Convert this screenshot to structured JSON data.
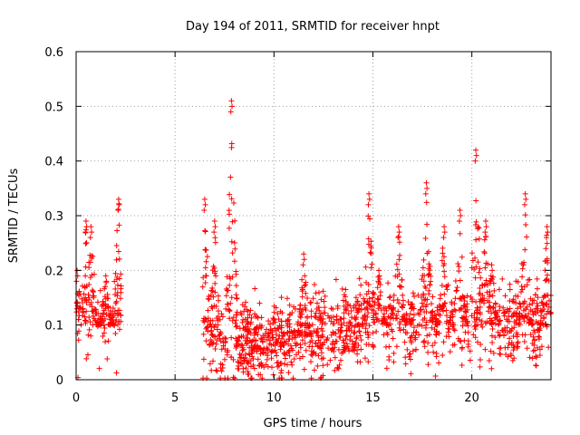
{
  "chart_data": {
    "type": "scatter",
    "title": "Day 194 of 2011, SRMTID for receiver hnpt",
    "xlabel": "GPS time / hours",
    "ylabel": "SRMTID / TECUs",
    "xlim": [
      0,
      24
    ],
    "ylim": [
      0,
      0.6
    ],
    "xticks": [
      0,
      5,
      10,
      15,
      20
    ],
    "xtick_labels": [
      "0",
      "5",
      "10",
      "15",
      "20"
    ],
    "yticks": [
      0,
      0.1,
      0.2,
      0.3,
      0.4,
      0.5,
      0.6
    ],
    "ytick_labels": [
      "0",
      "0.1",
      "0.2",
      "0.3",
      "0.4",
      "0.5",
      "0.6"
    ],
    "grid": true,
    "marker": "+",
    "color": "#ff0000",
    "series": [
      {
        "name": "SRMTID",
        "segments": [
          {
            "x_start": 0.0,
            "x_end": 2.3,
            "base": 0.1,
            "spread": 0.06,
            "peaks": [
              [
                0.05,
                0.2
              ],
              [
                0.5,
                0.29
              ],
              [
                0.75,
                0.28
              ],
              [
                1.5,
                0.19
              ],
              [
                2.15,
                0.33
              ]
            ]
          },
          {
            "x_start": 6.4,
            "x_end": 24.0,
            "base": 0.09,
            "spread": 0.05,
            "peaks": [
              [
                6.5,
                0.33
              ],
              [
                7.0,
                0.29
              ],
              [
                7.85,
                0.51
              ],
              [
                11.5,
                0.23
              ],
              [
                14.8,
                0.34
              ],
              [
                15.3,
                0.2
              ],
              [
                16.3,
                0.28
              ],
              [
                17.7,
                0.36
              ],
              [
                18.6,
                0.28
              ],
              [
                19.4,
                0.31
              ],
              [
                20.2,
                0.42
              ],
              [
                20.7,
                0.29
              ],
              [
                21.0,
                0.21
              ],
              [
                22.7,
                0.34
              ],
              [
                23.8,
                0.28
              ]
            ]
          }
        ]
      }
    ]
  }
}
